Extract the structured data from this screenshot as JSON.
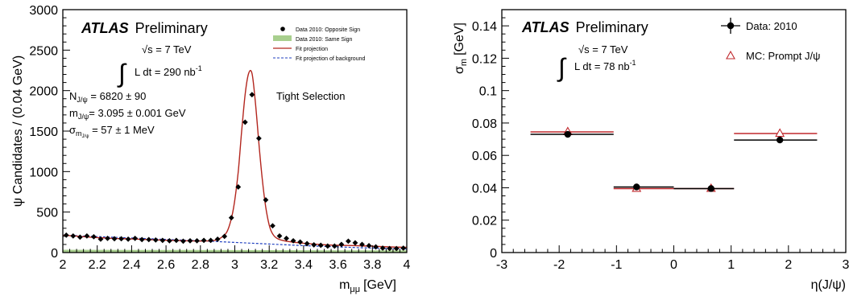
{
  "chart_data": [
    {
      "type": "scatter",
      "experiment": "ATLAS",
      "status": "Preliminary",
      "energy_label": "√s = 7 TeV",
      "lumi_label": "L dt = 290 nb",
      "lumi_exp": "-1",
      "xlabel": "m",
      "xlabel_sub": "μμ",
      "xlabel_unit": "[GeV]",
      "ylabel": "ψ Candidates / (0.04 GeV)",
      "xlim": [
        2.0,
        4.0
      ],
      "ylim": [
        0,
        3000
      ],
      "xticks": [
        "2",
        "2.2",
        "2.4",
        "2.6",
        "2.8",
        "3",
        "3.2",
        "3.4",
        "3.6",
        "3.8",
        "4"
      ],
      "yticks": [
        "0",
        "500",
        "1000",
        "1500",
        "2000",
        "2500",
        "3000"
      ],
      "selection_label": "Tight Selection",
      "fit_results": {
        "n": {
          "sym": "N",
          "sub": "J/ψ",
          "val": " = 6820 ± 90"
        },
        "m": {
          "sym": "m",
          "sub": "J/ψ",
          "val": "= 3.095 ± 0.001 GeV"
        },
        "s": {
          "sym": "σ",
          "sub": "m",
          "subsub": "J/ψ",
          "val": " = 57 ±  1 MeV"
        }
      },
      "legend": [
        {
          "label": "Data 2010: Opposite Sign",
          "style": "marker",
          "color": "#000000"
        },
        {
          "label": "Data 2010: Same Sign",
          "style": "fill",
          "color": "#a8cf8e"
        },
        {
          "label": "Fit projection",
          "style": "line",
          "color": "#b3261e"
        },
        {
          "label": "Fit projection of background",
          "style": "dashed",
          "color": "#1f3fbf"
        }
      ],
      "series": [
        {
          "name": "Data 2010: Opposite Sign",
          "x": [
            2.02,
            2.06,
            2.1,
            2.14,
            2.18,
            2.22,
            2.26,
            2.3,
            2.34,
            2.38,
            2.42,
            2.46,
            2.5,
            2.54,
            2.58,
            2.62,
            2.66,
            2.7,
            2.74,
            2.78,
            2.82,
            2.86,
            2.9,
            2.94,
            2.98,
            3.02,
            3.06,
            3.1,
            3.14,
            3.18,
            3.22,
            3.26,
            3.3,
            3.34,
            3.38,
            3.42,
            3.46,
            3.5,
            3.54,
            3.58,
            3.62,
            3.66,
            3.7,
            3.74,
            3.78,
            3.82,
            3.86,
            3.9,
            3.94,
            3.98
          ],
          "y": [
            215,
            205,
            190,
            205,
            195,
            165,
            175,
            170,
            170,
            165,
            175,
            160,
            160,
            155,
            150,
            145,
            150,
            140,
            145,
            145,
            150,
            150,
            165,
            200,
            430,
            810,
            1610,
            1950,
            1410,
            650,
            330,
            205,
            175,
            145,
            130,
            110,
            95,
            90,
            80,
            80,
            100,
            140,
            120,
            100,
            85,
            70,
            55,
            50,
            50,
            55
          ]
        },
        {
          "name": "Fit projection",
          "x": [
            2.0,
            2.1,
            2.2,
            2.3,
            2.4,
            2.5,
            2.6,
            2.7,
            2.8,
            2.85,
            2.9,
            2.95,
            2.98,
            3.0,
            3.02,
            3.04,
            3.06,
            3.08,
            3.1,
            3.12,
            3.14,
            3.16,
            3.18,
            3.2,
            3.22,
            3.25,
            3.3,
            3.4,
            3.5,
            3.6,
            3.7,
            3.8,
            3.9,
            4.0
          ],
          "y": [
            215,
            200,
            185,
            175,
            168,
            160,
            152,
            146,
            142,
            145,
            160,
            240,
            420,
            650,
            1000,
            1500,
            1950,
            2210,
            2210,
            1850,
            1350,
            900,
            560,
            340,
            230,
            170,
            140,
            115,
            100,
            90,
            85,
            78,
            70,
            65
          ]
        },
        {
          "name": "Fit projection of background",
          "x": [
            2.0,
            2.4,
            2.8,
            3.0,
            3.2,
            3.4,
            3.6,
            3.8,
            4.0
          ],
          "y": [
            215,
            180,
            145,
            125,
            105,
            85,
            70,
            55,
            45
          ]
        },
        {
          "name": "Data 2010: Same Sign",
          "x": [
            2.0,
            2.4,
            2.8,
            3.2,
            3.6,
            4.0
          ],
          "y": [
            35,
            33,
            32,
            30,
            28,
            27
          ]
        }
      ]
    },
    {
      "type": "scatter",
      "experiment": "ATLAS",
      "status": "Preliminary",
      "energy_label": "√s = 7 TeV",
      "lumi_label": "L dt = 78 nb",
      "lumi_exp": "-1",
      "xlabel": "η(J/ψ)",
      "ylabel": "σ",
      "ylabel_sub": "m",
      "ylabel_unit": "[GeV]",
      "xlim": [
        -3,
        3
      ],
      "ylim": [
        0,
        0.15
      ],
      "xticks": [
        "-3",
        "-2",
        "-1",
        "0",
        "1",
        "2",
        "3"
      ],
      "yticks": [
        "0",
        "0.02",
        "0.04",
        "0.06",
        "0.08",
        "0.1",
        "0.12",
        "0.14"
      ],
      "legend": [
        {
          "label": "Data: 2010",
          "style": "marker",
          "color": "#000000"
        },
        {
          "label": "MC: Prompt J/ψ",
          "style": "triangle",
          "color": "#c0282d"
        }
      ],
      "series": [
        {
          "name": "Data: 2010",
          "points": [
            {
              "x": -1.85,
              "y": 0.073,
              "xlo": -2.5,
              "xhi": -1.05
            },
            {
              "x": -0.65,
              "y": 0.0405,
              "xlo": -1.05,
              "xhi": 0.0
            },
            {
              "x": 0.65,
              "y": 0.0395,
              "xlo": 0.0,
              "xhi": 1.05
            },
            {
              "x": 1.85,
              "y": 0.0695,
              "xlo": 1.05,
              "xhi": 2.5
            }
          ]
        },
        {
          "name": "MC: Prompt J/ψ",
          "points": [
            {
              "x": -1.85,
              "y": 0.0745,
              "xlo": -2.5,
              "xhi": -1.05
            },
            {
              "x": -0.65,
              "y": 0.0395,
              "xlo": -1.05,
              "xhi": 0.0
            },
            {
              "x": 0.65,
              "y": 0.0395,
              "xlo": 0.0,
              "xhi": 1.05
            },
            {
              "x": 1.85,
              "y": 0.0735,
              "xlo": 1.05,
              "xhi": 2.5
            }
          ]
        }
      ]
    }
  ]
}
